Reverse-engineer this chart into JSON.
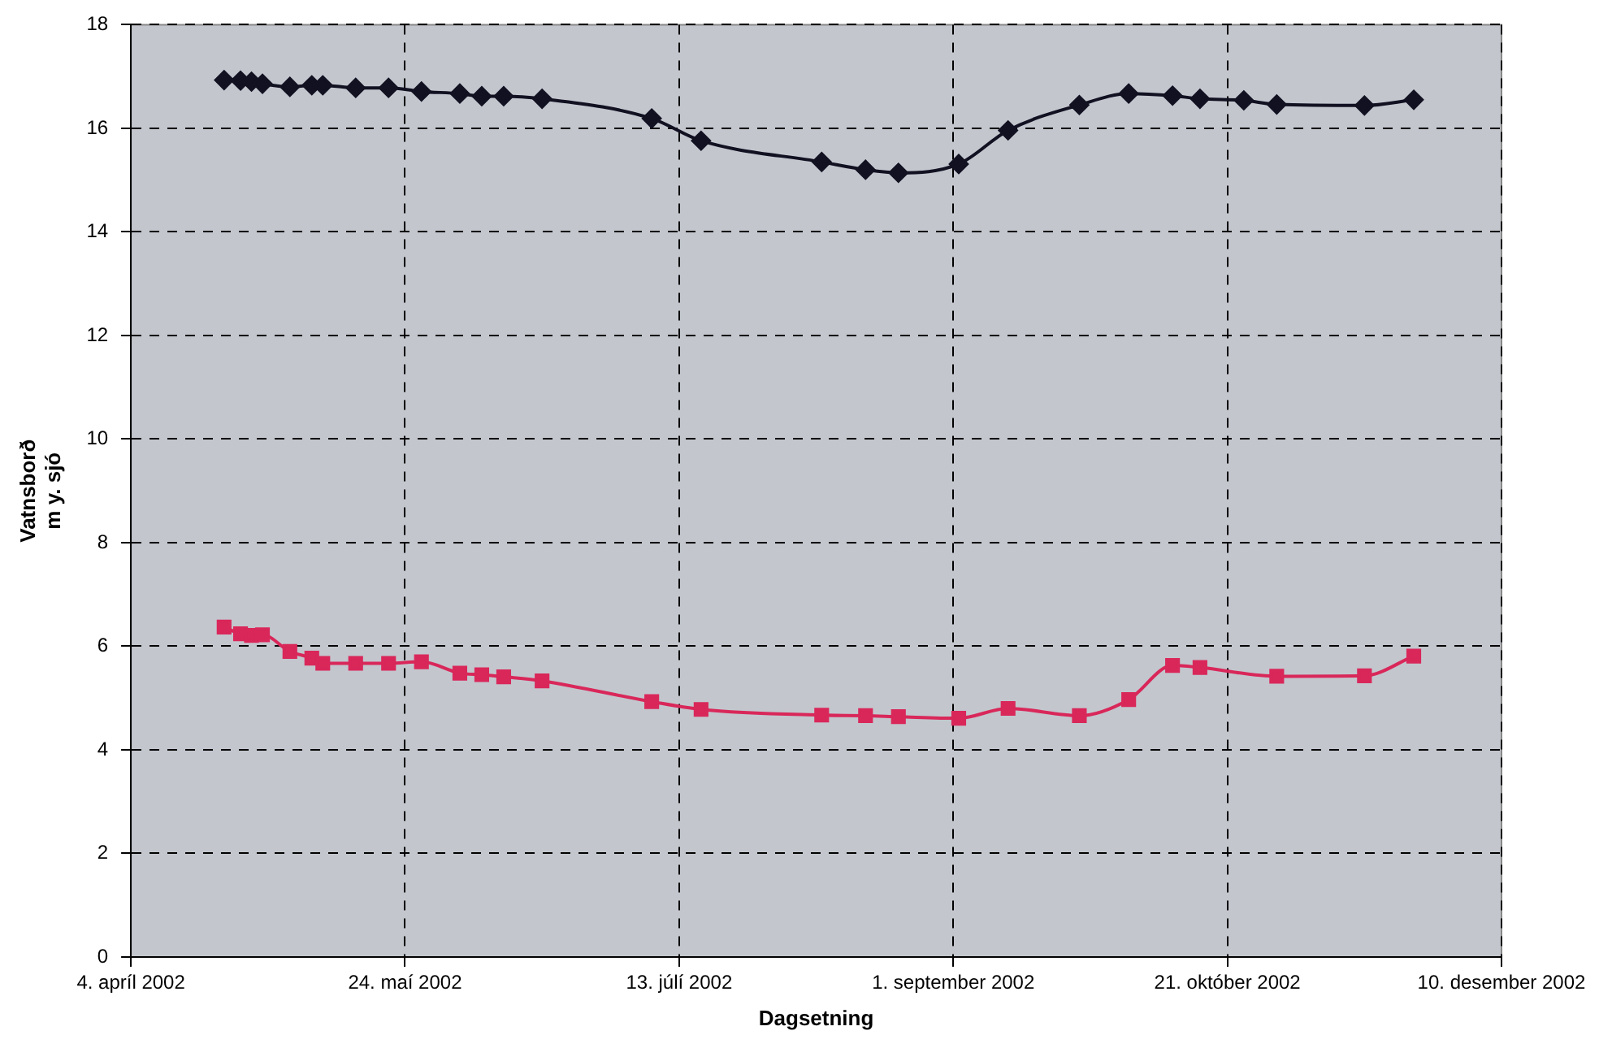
{
  "chart_data": {
    "type": "line",
    "xlabel": "Dagsetning",
    "ylabel": "Vatnsborð\nm y. sjó",
    "xlim": [
      "2002-04-04",
      "2002-12-10"
    ],
    "xticks": [
      {
        "value": "2002-04-04",
        "label": "4. apríl 2002"
      },
      {
        "value": "2002-05-24",
        "label": "24. maí 2002"
      },
      {
        "value": "2002-07-13",
        "label": "13. júlí 2002"
      },
      {
        "value": "2002-09-01",
        "label": "1. september 2002"
      },
      {
        "value": "2002-10-21",
        "label": "21. október 2002"
      },
      {
        "value": "2002-12-10",
        "label": "10. desember 2002"
      }
    ],
    "ylim": [
      0,
      18
    ],
    "yticks": [
      0,
      2,
      4,
      6,
      8,
      10,
      12,
      14,
      16,
      18
    ],
    "grid": true,
    "line_style": "solid",
    "series": [
      {
        "color": "#111122",
        "marker": "diamond",
        "x": [
          "2002-04-21",
          "2002-04-24",
          "2002-04-26",
          "2002-04-28",
          "2002-05-03",
          "2002-05-07",
          "2002-05-09",
          "2002-05-15",
          "2002-05-21",
          "2002-05-27",
          "2002-06-03",
          "2002-06-07",
          "2002-06-11",
          "2002-06-18",
          "2002-07-08",
          "2002-07-17",
          "2002-08-08",
          "2002-08-16",
          "2002-08-22",
          "2002-09-02",
          "2002-09-11",
          "2002-09-24",
          "2002-10-03",
          "2002-10-11",
          "2002-10-16",
          "2002-10-24",
          "2002-10-30",
          "2002-11-15",
          "2002-11-24"
        ],
        "values": [
          16.93,
          16.92,
          16.9,
          16.86,
          16.8,
          16.83,
          16.83,
          16.78,
          16.78,
          16.71,
          16.67,
          16.62,
          16.62,
          16.57,
          16.19,
          15.76,
          15.35,
          15.2,
          15.14,
          15.31,
          15.96,
          16.45,
          16.67,
          16.63,
          16.57,
          16.54,
          16.46,
          16.44,
          16.55
        ]
      },
      {
        "color": "#d9275a",
        "marker": "square",
        "x": [
          "2002-04-21",
          "2002-04-24",
          "2002-04-26",
          "2002-04-28",
          "2002-05-03",
          "2002-05-07",
          "2002-05-09",
          "2002-05-15",
          "2002-05-21",
          "2002-05-27",
          "2002-06-03",
          "2002-06-07",
          "2002-06-11",
          "2002-06-18",
          "2002-07-08",
          "2002-07-17",
          "2002-08-08",
          "2002-08-16",
          "2002-08-22",
          "2002-09-02",
          "2002-09-11",
          "2002-09-24",
          "2002-10-03",
          "2002-10-11",
          "2002-10-16",
          "2002-10-30",
          "2002-11-15",
          "2002-11-24"
        ],
        "values": [
          6.37,
          6.24,
          6.21,
          6.22,
          5.9,
          5.77,
          5.67,
          5.67,
          5.67,
          5.7,
          5.48,
          5.45,
          5.41,
          5.33,
          4.93,
          4.78,
          4.67,
          4.66,
          4.64,
          4.61,
          4.8,
          4.66,
          4.97,
          5.63,
          5.59,
          5.42,
          5.43,
          5.81
        ]
      }
    ]
  }
}
